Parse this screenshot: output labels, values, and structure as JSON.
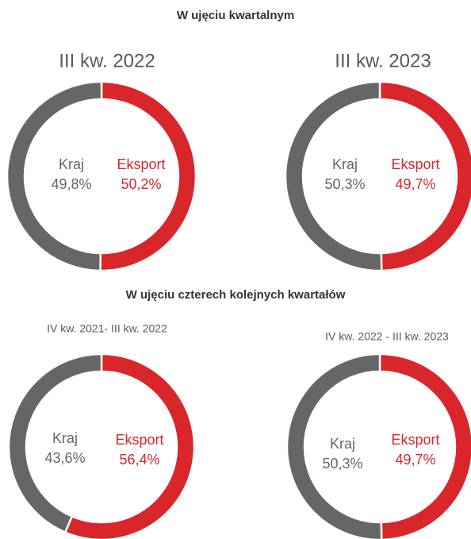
{
  "headings": [
    "W ujęciu kwartalnym",
    "W ujęciu czterech kolejnych kwartałów"
  ],
  "chart_data": [
    {
      "type": "donut",
      "title": "III kw. 2022",
      "categories": [
        "Kraj",
        "Eksport"
      ],
      "values": [
        49.8,
        50.2
      ],
      "value_labels": [
        "49,8%",
        "50,2%"
      ],
      "colors": [
        "#666666",
        "#d9262a"
      ]
    },
    {
      "type": "donut",
      "title": "III kw. 2023",
      "categories": [
        "Kraj",
        "Eksport"
      ],
      "values": [
        50.3,
        49.7
      ],
      "value_labels": [
        "50,3%",
        "49,7%"
      ],
      "colors": [
        "#666666",
        "#d9262a"
      ]
    },
    {
      "type": "donut",
      "title": "IV kw. 2021- III kw. 2022",
      "categories": [
        "Kraj",
        "Eksport"
      ],
      "values": [
        43.6,
        56.4
      ],
      "value_labels": [
        "43,6%",
        "56,4%"
      ],
      "colors": [
        "#666666",
        "#d9262a"
      ]
    },
    {
      "type": "donut",
      "title": "IV kw. 2022 - III kw. 2023",
      "categories": [
        "Kraj",
        "Eksport"
      ],
      "values": [
        50.3,
        49.7
      ],
      "value_labels": [
        "50,3%",
        "49,7%"
      ],
      "colors": [
        "#666666",
        "#d9262a"
      ]
    }
  ]
}
